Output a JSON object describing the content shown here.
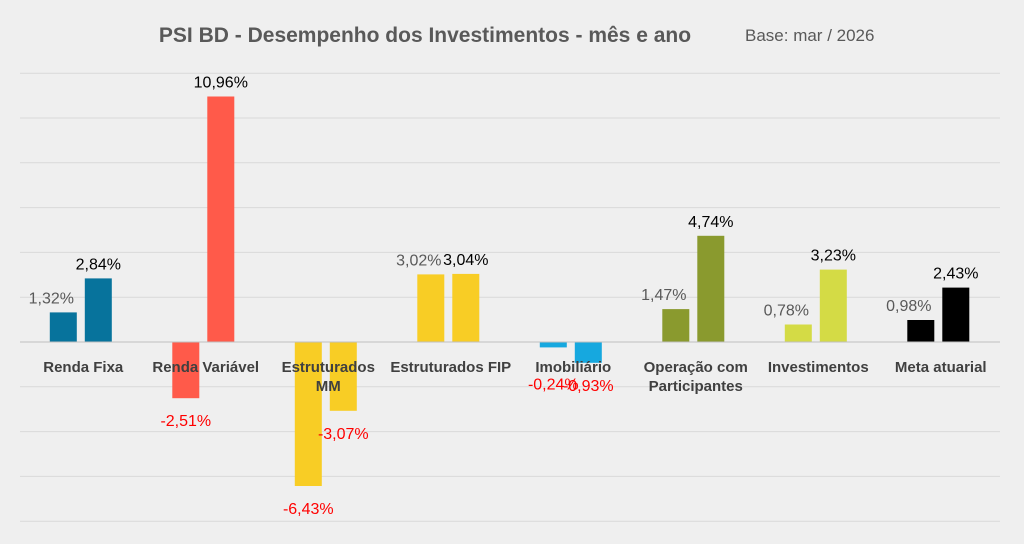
{
  "chart_data": {
    "type": "bar",
    "title": "PSI BD - Desempenho dos Investimentos - mês e ano",
    "subtitle": "Base: mar / 2026",
    "ylim": [
      -8,
      12
    ],
    "grid": true,
    "legend": "none",
    "categories": [
      {
        "lines": [
          "Renda Fixa"
        ],
        "color": "#07739c"
      },
      {
        "lines": [
          "Renda Variável"
        ],
        "color": "#ff5a4a"
      },
      {
        "lines": [
          "Estruturados",
          "MM"
        ],
        "color": "#f8cd25"
      },
      {
        "lines": [
          "Estruturados FIP"
        ],
        "color": "#f8cd25"
      },
      {
        "lines": [
          "Imobiliário"
        ],
        "color": "#16a8df"
      },
      {
        "lines": [
          "Operação com",
          "Participantes"
        ],
        "color": "#8a9a2e"
      },
      {
        "lines": [
          "Investimentos"
        ],
        "color": "#d4db45"
      },
      {
        "lines": [
          "Meta atuarial"
        ],
        "color": "#000000"
      }
    ],
    "series": [
      {
        "name": "mês",
        "values": [
          1.32,
          -2.51,
          -6.43,
          3.02,
          -0.24,
          1.47,
          0.78,
          0.98
        ],
        "labels": [
          "1,32%",
          "-2,51%",
          "-6,43%",
          "3,02%",
          "-0,24%",
          "1,47%",
          "0,78%",
          "0,98%"
        ]
      },
      {
        "name": "ano",
        "values": [
          2.84,
          10.96,
          -3.07,
          3.04,
          -0.93,
          4.74,
          3.23,
          2.43
        ],
        "labels": [
          "2,84%",
          "10,96%",
          "-3,07%",
          "3,04%",
          "-0,93%",
          "4,74%",
          "3,23%",
          "2,43%"
        ]
      }
    ]
  }
}
